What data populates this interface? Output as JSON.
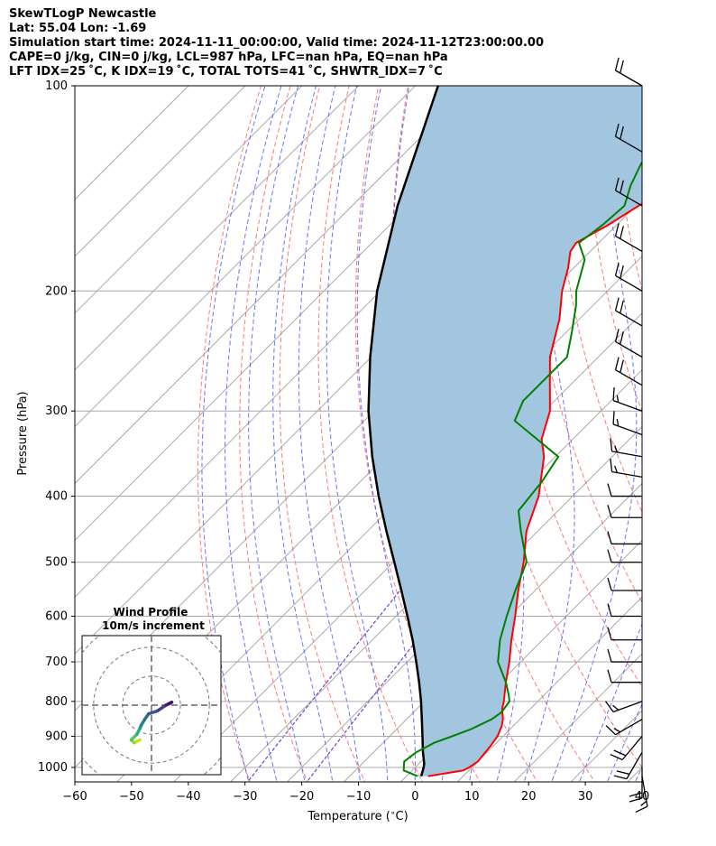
{
  "header": {
    "title": "SkewTLogP Newcastle",
    "location": "Lat: 55.04   Lon: -1.69",
    "times": "Simulation start time: 2024-11-11_00:00:00, Valid time: 2024-11-12T23:00:00.00",
    "params": "CAPE=0 j/kg, CIN=0 j/kg, LCL=987 hPa, LFC=nan hPa, EQ=nan hPa",
    "indices": "LFT IDX=25 ˚C, K IDX=19 ˚C, TOTAL TOTS=41 ˚C, SHWTR_IDX=7 ˚C"
  },
  "chart_data": {
    "type": "line",
    "xlabel": "Temperature ($^\\circ$C)",
    "ylabel": "Pressure (hPa)",
    "xlim": [
      -60,
      40
    ],
    "ylim": [
      1050,
      100
    ],
    "y_log_scale": true,
    "xticks": [
      -60,
      -50,
      -40,
      -30,
      -20,
      -10,
      0,
      10,
      20,
      30,
      40
    ],
    "yticks": [
      100,
      200,
      300,
      400,
      500,
      600,
      700,
      800,
      900,
      1000
    ],
    "grid": true,
    "skew": true,
    "colors": {
      "temperature": "#ff0000",
      "dewpoint": "#008000",
      "parcel": "#000000",
      "fill": "#a3c6e0",
      "dry_adiabat": "#ff5555",
      "moist_adiabat": "#3344ff",
      "mixing_ratio": "#7744cc",
      "isotherm": "#aaaaaa"
    },
    "series": [
      {
        "key": "temperature",
        "p": [
          1030,
          1010,
          1000,
          980,
          960,
          930,
          900,
          870,
          850,
          820,
          800,
          750,
          700,
          650,
          600,
          550,
          500,
          450,
          400,
          350,
          330,
          300,
          270,
          250,
          220,
          200,
          185,
          175,
          170,
          160,
          150,
          140,
          130,
          120,
          110,
          100
        ],
        "t": [
          3.8,
          9.0,
          9.5,
          10.0,
          9.8,
          9.5,
          9.0,
          8.0,
          7.0,
          5.0,
          4.0,
          1.0,
          -2.0,
          -5.5,
          -9.0,
          -13.0,
          -17.0,
          -22.0,
          -26.0,
          -32.0,
          -35.5,
          -39.0,
          -44.5,
          -48.5,
          -53.5,
          -58.0,
          -61.0,
          -63.5,
          -64.0,
          -61.5,
          -59.5,
          -57.0,
          -55.5,
          -55.5,
          -57.0,
          -59.5
        ]
      },
      {
        "key": "dewpoint",
        "p": [
          1030,
          1010,
          980,
          950,
          920,
          900,
          880,
          850,
          830,
          800,
          780,
          750,
          700,
          650,
          600,
          550,
          500,
          450,
          420,
          380,
          350,
          310,
          290,
          250,
          230,
          210,
          200,
          180,
          170,
          160,
          150,
          140,
          130,
          120,
          110,
          100
        ],
        "t": [
          2.0,
          -1.5,
          -3.0,
          -2.5,
          -1.0,
          1.0,
          3.0,
          5.0,
          5.5,
          5.0,
          3.5,
          1.0,
          -4.0,
          -7.5,
          -10.5,
          -13.5,
          -16.5,
          -23.0,
          -27.0,
          -28.0,
          -29.5,
          -43.5,
          -45.5,
          -45.5,
          -49.0,
          -53.0,
          -55.5,
          -59.5,
          -63.5,
          -62.5,
          -62.0,
          -64.5,
          -66.5,
          -67.0,
          -67.5,
          -68.5
        ]
      },
      {
        "key": "parcel",
        "p": [
          1030,
          1000,
          987,
          950,
          900,
          850,
          800,
          750,
          700,
          650,
          600,
          550,
          500,
          450,
          400,
          350,
          300,
          250,
          200,
          150,
          100
        ],
        "t": [
          2.6,
          1.5,
          0.9,
          -1.3,
          -4.2,
          -7.3,
          -10.6,
          -14.3,
          -18.4,
          -22.9,
          -28.0,
          -33.6,
          -39.8,
          -46.7,
          -54.2,
          -62.3,
          -71.0,
          -80.2,
          -90.6,
          -102.0,
          -116.0
        ]
      }
    ],
    "wind_barbs": {
      "p": [
        100,
        125,
        150,
        175,
        200,
        225,
        250,
        275,
        300,
        325,
        350,
        375,
        400,
        430,
        470,
        500,
        550,
        600,
        650,
        700,
        750,
        800,
        850,
        900,
        950,
        1000,
        1030
      ],
      "speed_kt": [
        20,
        20,
        20,
        20,
        20,
        20,
        20,
        20,
        15,
        15,
        15,
        15,
        10,
        10,
        10,
        10,
        10,
        10,
        10,
        10,
        10,
        15,
        15,
        20,
        20,
        20,
        15
      ],
      "dir_deg": [
        300,
        300,
        300,
        300,
        300,
        300,
        300,
        300,
        290,
        290,
        280,
        280,
        270,
        270,
        270,
        270,
        270,
        270,
        270,
        270,
        270,
        250,
        240,
        220,
        210,
        180,
        170
      ]
    },
    "hodograph": {
      "title": "Wind Profile",
      "subtitle": "10m/s increment",
      "u": [
        -2.0,
        -3.0,
        -3.5,
        -2.5,
        -2.0,
        -1.8,
        -1.2,
        -0.5,
        1.0,
        2.5,
        3.5,
        3.0
      ],
      "v": [
        -6.0,
        -6.5,
        -6.0,
        -5.0,
        -4.0,
        -3.5,
        -2.5,
        -1.5,
        -1.0,
        0.0,
        0.5,
        0.2
      ],
      "rings": [
        5,
        10,
        15
      ],
      "lim": [
        -12,
        12
      ]
    }
  }
}
